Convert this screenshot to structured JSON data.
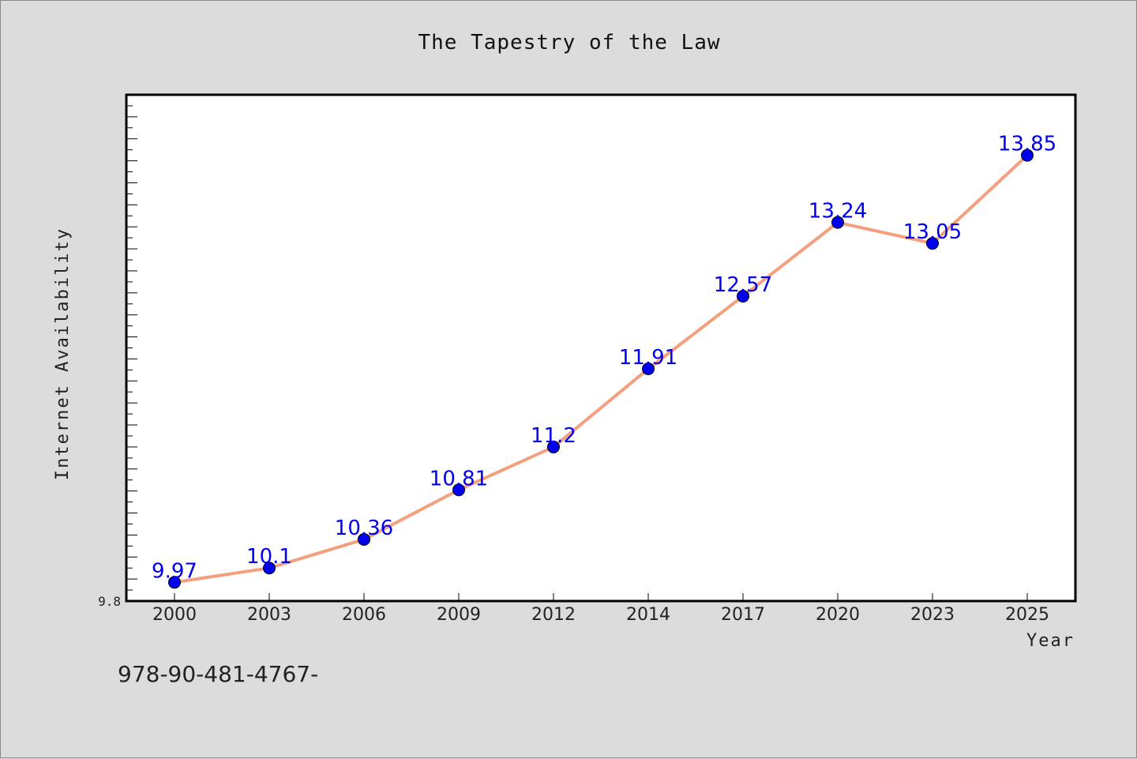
{
  "chart_data": {
    "type": "line",
    "title": "The Tapestry of the Law",
    "xlabel": "Year",
    "ylabel": "Internet Availability",
    "categories": [
      "2000",
      "2003",
      "2006",
      "2009",
      "2012",
      "2014",
      "2017",
      "2020",
      "2023",
      "2025"
    ],
    "series": [
      {
        "values": [
          9.97,
          10.1,
          10.36,
          10.81,
          11.2,
          11.91,
          12.57,
          13.24,
          13.05,
          13.85
        ],
        "labels": [
          "9.97",
          "10.1",
          "10.36",
          "10.81",
          "11.2",
          "11.91",
          "12.57",
          "13.24",
          "13.05",
          "13.85"
        ]
      }
    ],
    "ylim": [
      9.8,
      14.4
    ],
    "y_min_label": "9.8",
    "grid": false,
    "line_color": "#f4a07e",
    "marker_color": "#0000ee",
    "label_color": "#0000ee"
  },
  "footer": {
    "text": "978-90-481-4767-"
  }
}
